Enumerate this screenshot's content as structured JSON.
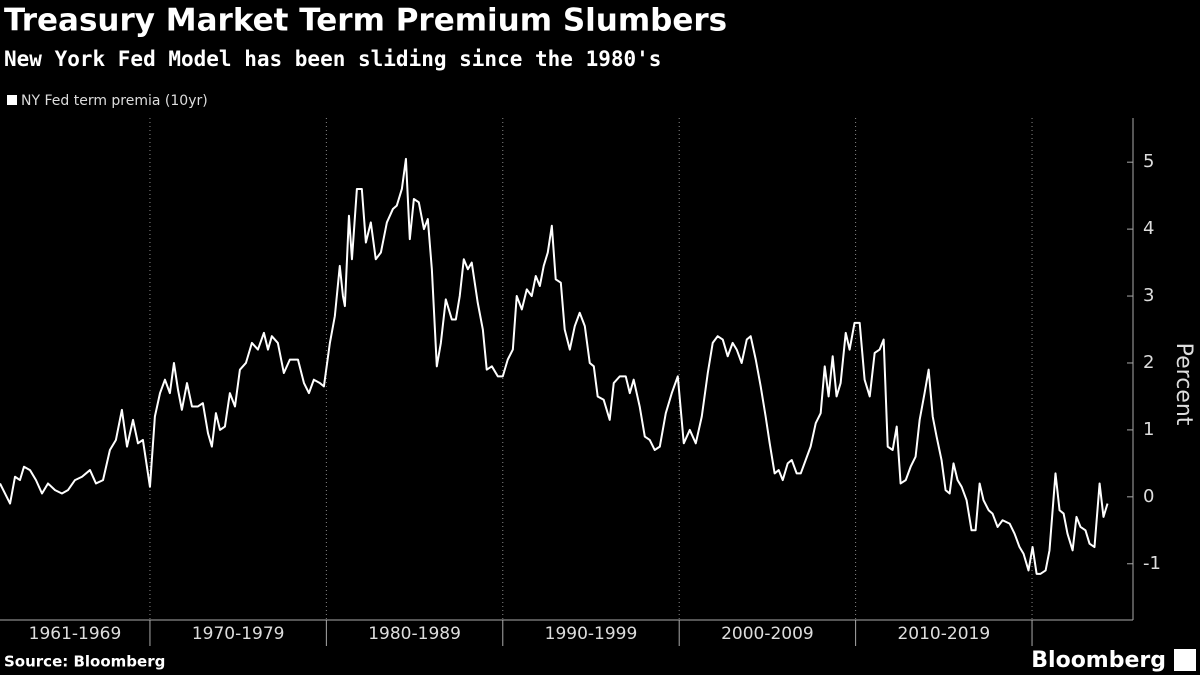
{
  "chart_data": {
    "type": "line",
    "title": "Treasury Market Term Premium Slumbers",
    "subtitle": "New York Fed Model has been sliding since the 1980's",
    "y_axis_label": "Percent",
    "source": "Source: Bloomberg",
    "brand": "Bloomberg",
    "xlim": [
      1961.5,
      2025.1
    ],
    "ylim": [
      -1.84,
      5.66
    ],
    "yticks": [
      -1,
      0,
      1,
      2,
      3,
      4,
      5
    ],
    "periods": [
      {
        "label": "1961-1969",
        "start": 1961,
        "end": 1970
      },
      {
        "label": "1970-1979",
        "start": 1970,
        "end": 1980
      },
      {
        "label": "1980-1989",
        "start": 1980,
        "end": 1990
      },
      {
        "label": "1990-1999",
        "start": 1990,
        "end": 2000
      },
      {
        "label": "2000-2009",
        "start": 2000,
        "end": 2010
      },
      {
        "label": "2010-2019",
        "start": 2010,
        "end": 2020
      }
    ],
    "x": [
      1961.5,
      1962.07,
      1962.35,
      1962.63,
      1962.86,
      1963.2,
      1963.54,
      1963.88,
      1964.22,
      1964.62,
      1965.01,
      1965.35,
      1965.75,
      1966.15,
      1966.6,
      1966.94,
      1967.34,
      1967.73,
      1968.07,
      1968.41,
      1968.7,
      1969.04,
      1969.32,
      1969.6,
      1970.0,
      1970.28,
      1970.57,
      1970.85,
      1971.13,
      1971.36,
      1971.59,
      1971.81,
      1972.1,
      1972.38,
      1972.72,
      1973.0,
      1973.29,
      1973.51,
      1973.74,
      1973.97,
      1974.25,
      1974.53,
      1974.82,
      1975.1,
      1975.44,
      1975.78,
      1976.12,
      1976.46,
      1976.69,
      1976.91,
      1977.25,
      1977.59,
      1977.93,
      1978.39,
      1978.73,
      1979.01,
      1979.29,
      1979.63,
      1979.86,
      1980.2,
      1980.48,
      1980.76,
      1980.94,
      1981.05,
      1981.28,
      1981.45,
      1981.73,
      1982.01,
      1982.24,
      1982.52,
      1982.8,
      1983.09,
      1983.43,
      1983.77,
      1983.99,
      1984.28,
      1984.51,
      1984.73,
      1984.96,
      1985.24,
      1985.53,
      1985.75,
      1985.98,
      1986.26,
      1986.49,
      1986.77,
      1987.11,
      1987.34,
      1987.56,
      1987.79,
      1988.02,
      1988.24,
      1988.58,
      1988.87,
      1989.09,
      1989.38,
      1989.72,
      1990.0,
      1990.28,
      1990.57,
      1990.79,
      1991.08,
      1991.36,
      1991.64,
      1991.87,
      1992.1,
      1992.32,
      1992.55,
      1992.78,
      1993.0,
      1993.29,
      1993.51,
      1993.8,
      1994.08,
      1994.36,
      1994.65,
      1994.93,
      1995.16,
      1995.38,
      1995.72,
      1996.06,
      1996.29,
      1996.63,
      1996.97,
      1997.2,
      1997.42,
      1997.76,
      1998.05,
      1998.33,
      1998.61,
      1998.9,
      1999.24,
      1999.58,
      1999.92,
      2000.26,
      2000.6,
      2000.94,
      2001.28,
      2001.62,
      2001.9,
      2002.18,
      2002.47,
      2002.75,
      2003.03,
      2003.26,
      2003.54,
      2003.83,
      2004.05,
      2004.34,
      2004.62,
      2004.9,
      2005.13,
      2005.41,
      2005.64,
      2005.87,
      2006.15,
      2006.38,
      2006.66,
      2006.89,
      2007.17,
      2007.45,
      2007.74,
      2008.02,
      2008.25,
      2008.47,
      2008.7,
      2008.92,
      2009.15,
      2009.44,
      2009.66,
      2009.94,
      2010.23,
      2010.51,
      2010.8,
      2011.08,
      2011.36,
      2011.59,
      2011.82,
      2012.1,
      2012.33,
      2012.55,
      2012.84,
      2013.12,
      2013.4,
      2013.63,
      2013.91,
      2014.14,
      2014.37,
      2014.59,
      2014.87,
      2015.1,
      2015.33,
      2015.55,
      2015.78,
      2016.01,
      2016.29,
      2016.57,
      2016.8,
      2017.03,
      2017.25,
      2017.54,
      2017.76,
      2018.05,
      2018.33,
      2018.73,
      2019.01,
      2019.29,
      2019.52,
      2019.8,
      2020.03,
      2020.26,
      2020.48,
      2020.77,
      2020.99,
      2021.33,
      2021.56,
      2021.79,
      2022.01,
      2022.3,
      2022.52,
      2022.75,
      2023.03,
      2023.26,
      2023.54,
      2023.83,
      2024.05,
      2024.28
    ],
    "series": [
      {
        "name": "NY Fed term premia (10yr)",
        "color": "#ffffff",
        "values": [
          0.2,
          -0.1,
          0.3,
          0.25,
          0.45,
          0.4,
          0.25,
          0.05,
          0.2,
          0.1,
          0.05,
          0.1,
          0.25,
          0.3,
          0.4,
          0.2,
          0.25,
          0.7,
          0.85,
          1.3,
          0.75,
          1.15,
          0.8,
          0.85,
          0.15,
          1.2,
          1.55,
          1.75,
          1.55,
          2.0,
          1.6,
          1.3,
          1.7,
          1.35,
          1.35,
          1.4,
          0.95,
          0.75,
          1.25,
          1.0,
          1.05,
          1.55,
          1.35,
          1.9,
          2.0,
          2.3,
          2.2,
          2.45,
          2.2,
          2.4,
          2.3,
          1.85,
          2.05,
          2.05,
          1.7,
          1.55,
          1.75,
          1.7,
          1.65,
          2.3,
          2.7,
          3.45,
          3.0,
          2.85,
          4.2,
          3.55,
          4.6,
          4.6,
          3.8,
          4.1,
          3.55,
          3.65,
          4.1,
          4.3,
          4.35,
          4.6,
          5.05,
          3.85,
          4.45,
          4.4,
          4.0,
          4.15,
          3.4,
          1.95,
          2.3,
          2.95,
          2.65,
          2.65,
          3.0,
          3.55,
          3.4,
          3.5,
          2.9,
          2.5,
          1.9,
          1.95,
          1.8,
          1.8,
          2.05,
          2.2,
          3.0,
          2.8,
          3.1,
          3.0,
          3.3,
          3.15,
          3.45,
          3.65,
          4.05,
          3.25,
          3.2,
          2.5,
          2.2,
          2.55,
          2.75,
          2.55,
          2.0,
          1.95,
          1.5,
          1.45,
          1.15,
          1.7,
          1.8,
          1.8,
          1.55,
          1.75,
          1.35,
          0.9,
          0.85,
          0.7,
          0.75,
          1.25,
          1.55,
          1.8,
          0.8,
          1.0,
          0.8,
          1.2,
          1.85,
          2.3,
          2.4,
          2.35,
          2.1,
          2.3,
          2.2,
          2.0,
          2.35,
          2.4,
          2.05,
          1.65,
          1.2,
          0.8,
          0.35,
          0.4,
          0.25,
          0.5,
          0.55,
          0.35,
          0.35,
          0.55,
          0.75,
          1.1,
          1.25,
          1.95,
          1.5,
          2.1,
          1.5,
          1.7,
          2.45,
          2.2,
          2.6,
          2.6,
          1.75,
          1.5,
          2.15,
          2.2,
          2.35,
          0.75,
          0.7,
          1.05,
          0.2,
          0.25,
          0.45,
          0.6,
          1.15,
          1.55,
          1.9,
          1.2,
          0.9,
          0.55,
          0.1,
          0.05,
          0.5,
          0.25,
          0.15,
          -0.05,
          -0.5,
          -0.5,
          0.2,
          -0.05,
          -0.2,
          -0.25,
          -0.45,
          -0.35,
          -0.4,
          -0.55,
          -0.75,
          -0.85,
          -1.1,
          -0.75,
          -1.15,
          -1.15,
          -1.1,
          -0.8,
          0.35,
          -0.2,
          -0.25,
          -0.55,
          -0.8,
          -0.3,
          -0.45,
          -0.5,
          -0.7,
          -0.75,
          0.2,
          -0.3,
          -0.1
        ]
      }
    ]
  }
}
